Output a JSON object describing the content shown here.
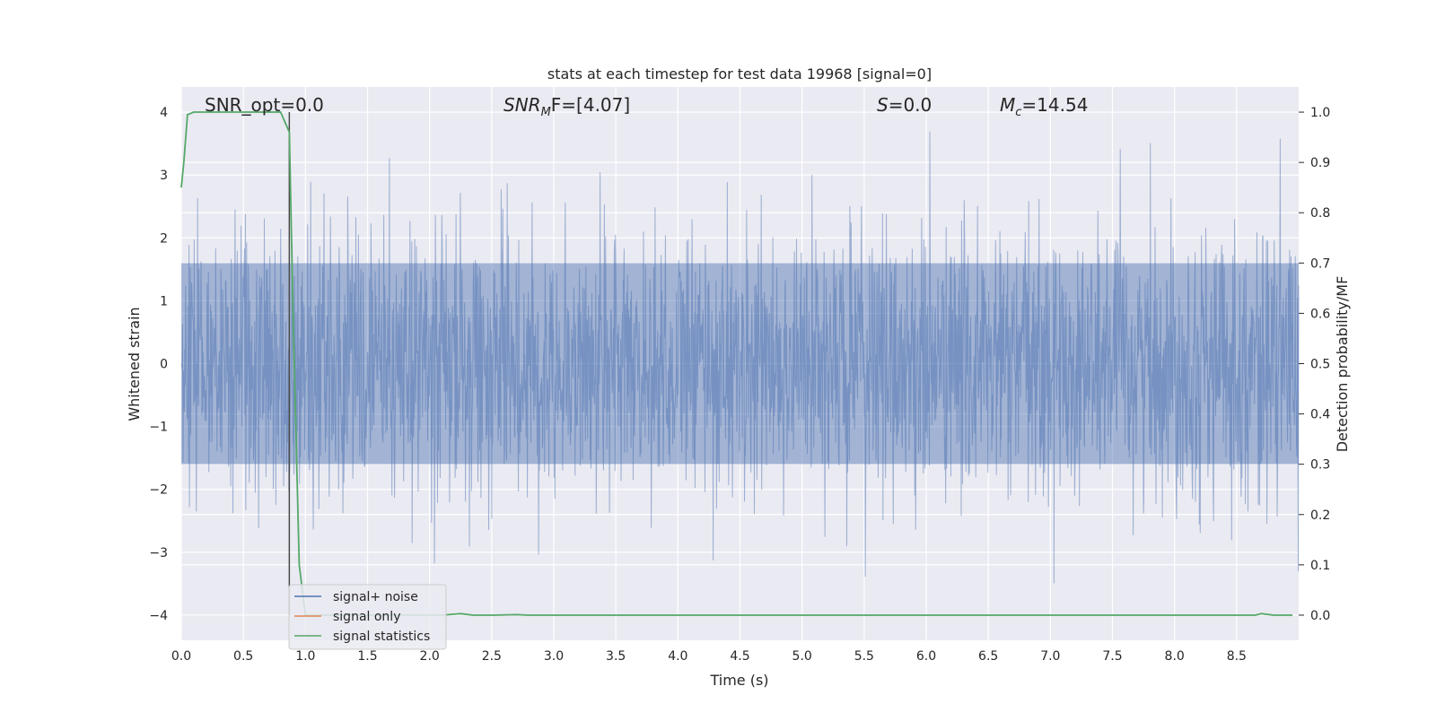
{
  "chart_data": {
    "type": "line",
    "title": "stats at each timestep for test data 19968 [signal=0]",
    "xlabel": "Time (s)",
    "ylabel_left": "Whitened strain",
    "ylabel_right": "Detection probability/MF",
    "xlim": [
      0.0,
      9.0
    ],
    "ylim_left": [
      -4.4,
      4.4
    ],
    "ylim_right": [
      -0.05,
      1.05
    ],
    "xticks": [
      "0.0",
      "0.5",
      "1.0",
      "1.5",
      "2.0",
      "2.5",
      "3.0",
      "3.5",
      "4.0",
      "4.5",
      "5.0",
      "5.5",
      "6.0",
      "6.5",
      "7.0",
      "7.5",
      "8.0",
      "8.5"
    ],
    "yticks_left": [
      "4",
      "3",
      "2",
      "1",
      "0",
      "−1",
      "−2",
      "−3",
      "−4"
    ],
    "yticks_right": [
      "1.0",
      "0.9",
      "0.8",
      "0.7",
      "0.6",
      "0.5",
      "0.4",
      "0.3",
      "0.2",
      "0.1",
      "0.0"
    ],
    "grid": true,
    "background": "#eaeaf2",
    "annotations": {
      "snr_opt": "SNR_opt=0.0",
      "snr_mf_main": "SNR",
      "snr_mf_sub": "M",
      "snr_mf_rest": "F=[4.07]",
      "s_main": "S",
      "s_rest": "=0.0",
      "mc_main": "M",
      "mc_sub": "c",
      "mc_rest": "=14.54"
    },
    "series": [
      {
        "name": "signal+ noise",
        "color": "#4c72b0",
        "description_level": "noise band, amplitude mostly within ±2, peaks to about ±3.9"
      },
      {
        "name": "signal only",
        "color": "#dd8452",
        "values": "zero throughout"
      },
      {
        "name": "signal statistics",
        "color": "#55a868",
        "x": [
          0.0,
          0.02,
          0.05,
          0.1,
          0.2,
          0.3,
          0.4,
          0.5,
          0.6,
          0.7,
          0.8,
          0.87,
          0.9,
          0.95,
          1.0,
          1.5,
          2.0,
          2.1,
          2.25,
          2.35,
          2.5,
          2.7,
          2.8,
          3.0,
          4.0,
          5.0,
          6.0,
          7.0,
          8.0,
          8.5,
          8.65,
          8.7,
          8.8,
          8.95
        ],
        "values": [
          0.85,
          0.9,
          0.995,
          1.0,
          1.0,
          1.0,
          1.0,
          1.0,
          1.0,
          1.0,
          1.0,
          0.96,
          0.6,
          0.1,
          0.0,
          0.0,
          0.0,
          0.0,
          0.003,
          0.0,
          0.0,
          0.001,
          0.0,
          0.0,
          0.0,
          0.0,
          0.0,
          0.0,
          0.0,
          0.0,
          0.0,
          0.003,
          0.0,
          0.0
        ]
      }
    ],
    "vertical_marker_x": 0.87,
    "legend": {
      "placement": "lower-left",
      "entries": [
        "signal+ noise",
        "signal only",
        "signal statistics"
      ]
    }
  }
}
